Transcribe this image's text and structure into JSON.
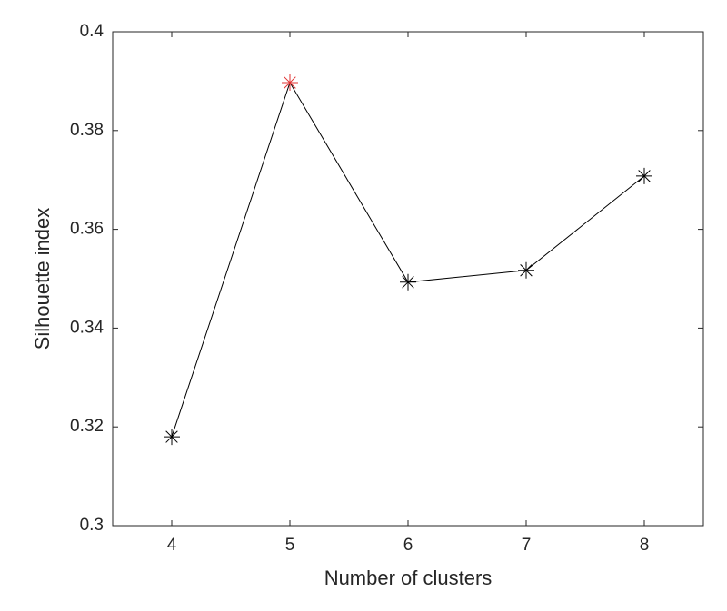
{
  "chart_data": {
    "type": "line",
    "x_label": "Number of clusters",
    "y_label": "Silhouette index",
    "x": [
      4,
      5,
      6,
      7,
      8
    ],
    "series": [
      {
        "color": "#000000",
        "values": [
          0.318,
          0.3897,
          0.3493,
          0.3517,
          0.3708
        ]
      }
    ],
    "marker_colors": [
      "#000000",
      "#e03030",
      "#000000",
      "#000000",
      "#000000"
    ],
    "xlim": [
      3.5,
      8.5
    ],
    "xticks": [
      4,
      5,
      6,
      7,
      8
    ],
    "ylim": [
      0.3,
      0.4
    ],
    "yticks": [
      0.3,
      0.32,
      0.34,
      0.36,
      0.38,
      0.4
    ]
  }
}
